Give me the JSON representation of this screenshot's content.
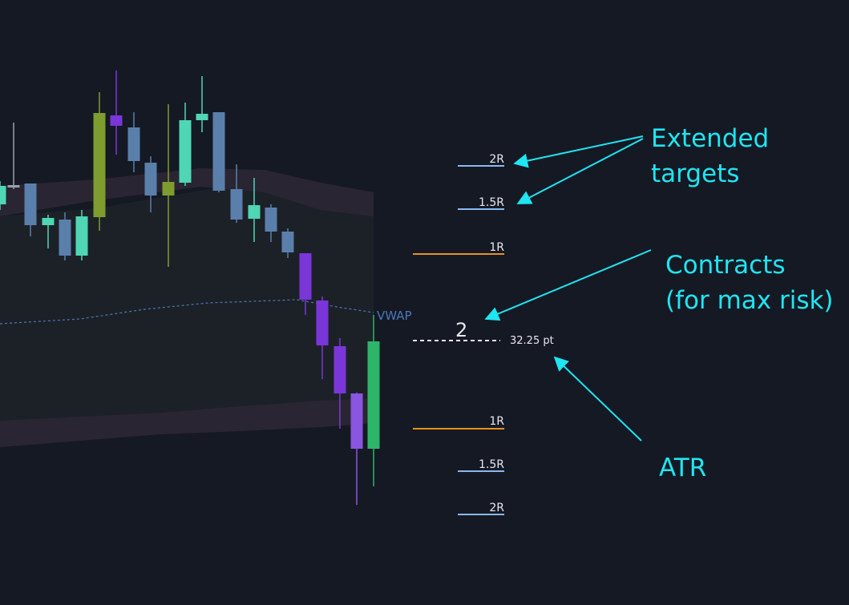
{
  "targets_upper": [
    "2R",
    "1.5R",
    "1R"
  ],
  "targets_lower": [
    "1R",
    "1.5R",
    "2R"
  ],
  "vwap_label": "VWAP",
  "contracts": 2,
  "atr_value": "32.25 pt",
  "annotations": {
    "extended": [
      "Extended",
      "targets"
    ],
    "contracts": [
      "Contracts",
      "(for max risk)"
    ],
    "atr": "ATR"
  }
}
